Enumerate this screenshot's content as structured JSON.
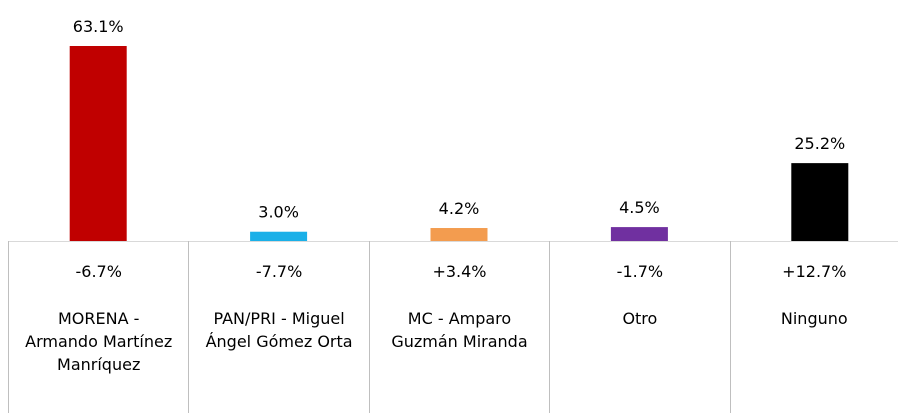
{
  "chart_data": {
    "type": "bar",
    "categories": [
      "MORENA - Armando Martínez Manríquez",
      "PAN/PRI - Miguel Ángel Gómez Orta",
      "MC - Amparo Guzmán Miranda",
      "Otro",
      "Ninguno"
    ],
    "values": [
      63.1,
      3.0,
      4.2,
      4.5,
      25.2
    ],
    "value_labels": [
      "63.1%",
      "3.0%",
      "4.2%",
      "4.5%",
      "25.2%"
    ],
    "colors": [
      "#c00000",
      "#1ab0e8",
      "#f39c4f",
      "#7030a0",
      "#000000"
    ],
    "changes": [
      "-6.7%",
      "-7.7%",
      "+3.4%",
      "-1.7%",
      "+12.7%"
    ]
  }
}
